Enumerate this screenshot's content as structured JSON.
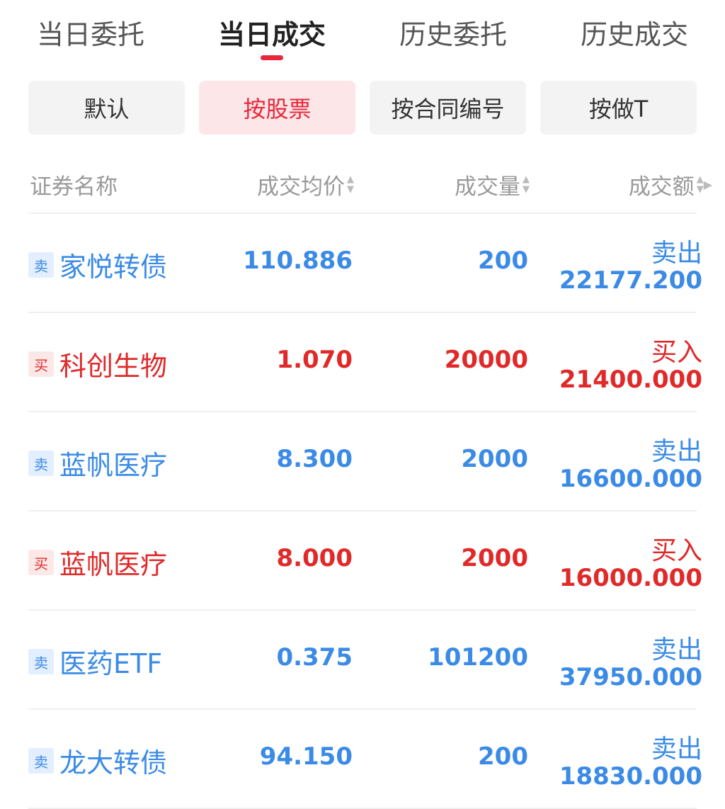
{
  "tabs": [
    {
      "label": "当日委托"
    },
    {
      "label": "当日成交",
      "active": true
    },
    {
      "label": "历史委托"
    },
    {
      "label": "历史成交"
    }
  ],
  "filters": [
    {
      "label": "默认"
    },
    {
      "label": "按股票",
      "active": true
    },
    {
      "label": "按合同编号"
    },
    {
      "label": "按做T"
    }
  ],
  "columns": {
    "name": "证券名称",
    "price": "成交均价",
    "volume": "成交量",
    "amount": "成交额"
  },
  "colors": {
    "buy": "#e02a2a",
    "sell": "#3b8be6",
    "accent": "#e8283a"
  },
  "rows": [
    {
      "badge": "卖",
      "name": "家悦转债",
      "price": "110.886",
      "volume": "200",
      "side": "卖出",
      "amount": "22177.200",
      "type": "sell"
    },
    {
      "badge": "买",
      "name": "科创生物",
      "price": "1.070",
      "volume": "20000",
      "side": "买入",
      "amount": "21400.000",
      "type": "buy"
    },
    {
      "badge": "卖",
      "name": "蓝帆医疗",
      "price": "8.300",
      "volume": "2000",
      "side": "卖出",
      "amount": "16600.000",
      "type": "sell"
    },
    {
      "badge": "买",
      "name": "蓝帆医疗",
      "price": "8.000",
      "volume": "2000",
      "side": "买入",
      "amount": "16000.000",
      "type": "buy"
    },
    {
      "badge": "卖",
      "name": "医药ETF",
      "price": "0.375",
      "volume": "101200",
      "side": "卖出",
      "amount": "37950.000",
      "type": "sell"
    },
    {
      "badge": "卖",
      "name": "龙大转债",
      "price": "94.150",
      "volume": "200",
      "side": "卖出",
      "amount": "18830.000",
      "type": "sell"
    }
  ]
}
